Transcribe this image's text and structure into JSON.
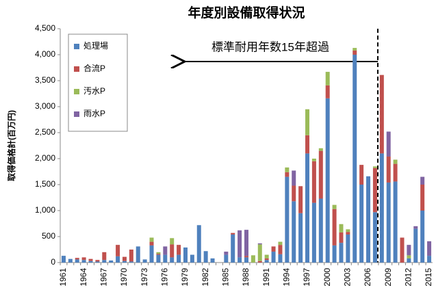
{
  "chart_data": {
    "type": "bar",
    "stacked": true,
    "title": "年度別設備取得状況",
    "y_label": "取得価格計(百万円)",
    "annotation": "標準耐用年数15年超過",
    "categories": [
      "1961",
      null,
      null,
      "1964",
      null,
      null,
      "1967",
      null,
      null,
      "1970",
      null,
      null,
      "1973",
      null,
      null,
      "1976",
      null,
      null,
      "1979",
      null,
      null,
      "1982",
      null,
      null,
      "1985",
      null,
      null,
      "1988",
      null,
      null,
      "1991",
      null,
      null,
      "1994",
      null,
      null,
      "1997",
      null,
      null,
      "2000",
      null,
      null,
      "2003",
      null,
      null,
      "2006",
      null,
      null,
      "2009",
      null,
      null,
      "2012",
      null,
      null,
      "2015"
    ],
    "series": [
      {
        "name": "処理場",
        "color": "#4f81bd",
        "values": [
          130,
          70,
          60,
          50,
          30,
          20,
          50,
          40,
          120,
          30,
          20,
          310,
          60,
          330,
          150,
          150,
          100,
          150,
          290,
          150,
          720,
          220,
          80,
          0,
          150,
          540,
          100,
          100,
          0,
          0,
          50,
          210,
          160,
          1650,
          1180,
          950,
          2100,
          1150,
          1230,
          3160,
          330,
          380,
          540,
          4000,
          1500,
          1660,
          970,
          2100,
          1540,
          1560,
          0,
          80,
          650,
          1000,
          130
        ]
      },
      {
        "name": "合流P",
        "color": "#c0504d",
        "values": [
          0,
          0,
          30,
          50,
          40,
          30,
          150,
          0,
          220,
          80,
          230,
          0,
          0,
          70,
          20,
          0,
          250,
          190,
          0,
          0,
          0,
          0,
          0,
          0,
          0,
          30,
          0,
          30,
          0,
          30,
          30,
          100,
          180,
          90,
          300,
          520,
          350,
          800,
          920,
          250,
          700,
          200,
          50,
          80,
          380,
          0,
          850,
          1510,
          500,
          340,
          480,
          0,
          0,
          500,
          0
        ]
      },
      {
        "name": "汚水P",
        "color": "#9bbb59",
        "values": [
          0,
          0,
          0,
          0,
          0,
          0,
          0,
          0,
          0,
          0,
          0,
          0,
          0,
          80,
          30,
          0,
          120,
          0,
          0,
          0,
          0,
          0,
          0,
          0,
          0,
          0,
          0,
          0,
          140,
          320,
          70,
          0,
          60,
          90,
          0,
          0,
          500,
          50,
          50,
          260,
          80,
          160,
          50,
          50,
          0,
          0,
          30,
          0,
          0,
          80,
          0,
          60,
          0,
          0,
          0
        ]
      },
      {
        "name": "雨水P",
        "color": "#8064a2",
        "values": [
          0,
          0,
          0,
          0,
          0,
          0,
          0,
          0,
          0,
          0,
          0,
          0,
          0,
          0,
          0,
          160,
          0,
          0,
          0,
          0,
          0,
          0,
          0,
          0,
          60,
          0,
          520,
          500,
          0,
          20,
          0,
          0,
          0,
          0,
          290,
          0,
          0,
          0,
          0,
          0,
          0,
          0,
          0,
          0,
          0,
          0,
          0,
          0,
          480,
          0,
          0,
          200,
          50,
          150,
          280
        ]
      }
    ],
    "ylim": [
      0,
      4500
    ],
    "yticks": [
      0,
      500,
      {
        "value": 1000,
        "label": "1,000"
      },
      {
        "value": 1500,
        "label": "1,500"
      },
      {
        "value": 2000,
        "label": "2,000"
      },
      {
        "value": 2500,
        "label": "2,500"
      },
      {
        "value": 3000,
        "label": "3,000"
      },
      {
        "value": 3500,
        "label": "3,500"
      },
      {
        "value": 4000,
        "label": "4,000"
      },
      {
        "value": 4500,
        "label": "4,500"
      }
    ],
    "grid": false
  }
}
